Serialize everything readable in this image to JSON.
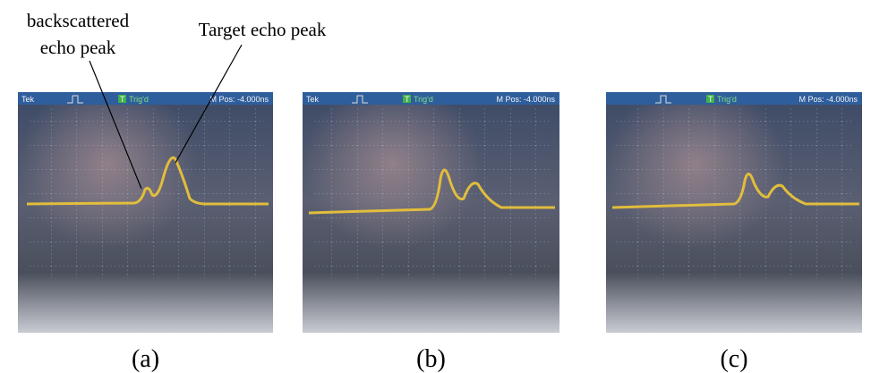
{
  "annotations": [
    {
      "lines": [
        "backscattered",
        "echo peak"
      ]
    },
    {
      "lines": [
        "Target echo peak"
      ]
    }
  ],
  "panels": [
    {
      "label": "(a)",
      "screen": {
        "brand": "Tek",
        "trigger": "T",
        "status": "Trig'd",
        "position": "M Pos: -4.000ns"
      }
    },
    {
      "label": "(b)",
      "screen": {
        "brand": "Tek",
        "trigger": "T",
        "status": "Trig'd",
        "position": "M Pos: -4.000ns"
      }
    },
    {
      "label": "(c)",
      "screen": {
        "trigger": "T",
        "status": "Trig'd",
        "position": "M Pos: -4.000ns"
      }
    }
  ]
}
